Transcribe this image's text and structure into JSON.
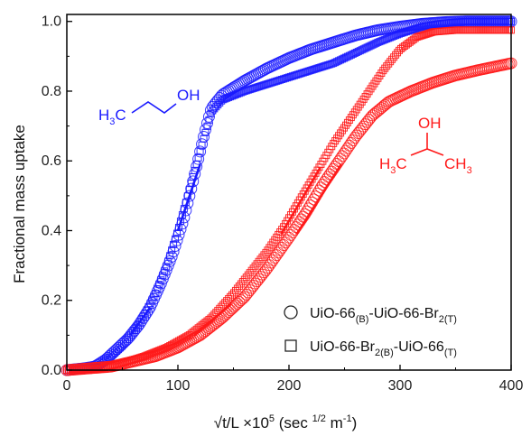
{
  "chart_data": {
    "type": "scatter",
    "xlabel_parts": [
      "√t/L ×10",
      "5",
      " (sec ",
      "1/2",
      " m",
      "-1",
      ")"
    ],
    "ylabel": "Fractional mass uptake",
    "xlim": [
      0,
      400
    ],
    "ylim": [
      0,
      1.02
    ],
    "x_ticks": [
      "0",
      "100",
      "200",
      "300",
      "400"
    ],
    "y_ticks": [
      "0.0",
      "0.2",
      "0.4",
      "0.6",
      "0.8",
      "1.0"
    ],
    "legend_placement": "bottom-right",
    "legend": [
      {
        "marker": "circle",
        "parts": [
          "UiO-66",
          "(B)",
          "-UiO-66-Br",
          "2(T)"
        ]
      },
      {
        "marker": "square",
        "parts": [
          "UiO-66-Br",
          "2(B)",
          "-UiO-66",
          "(T)"
        ]
      }
    ],
    "molecules": {
      "propanol": {
        "h": "H",
        "sub": "3",
        "c": "C",
        "oh": "OH"
      },
      "isopropanol": {
        "oh": "OH",
        "left_h": "H",
        "left_sub": "3",
        "left_c": "C",
        "right_c": "CH",
        "right_sub": "3"
      }
    },
    "colors": {
      "propanol": "#1a1aff",
      "isopropanol": "#ff1a1a"
    },
    "series": [
      {
        "molecule": "1-propanol",
        "color": "#1a1aff",
        "marker": "circle",
        "points": [
          [
            0,
            0
          ],
          [
            15,
            0.005
          ],
          [
            25,
            0.01
          ],
          [
            35,
            0.03
          ],
          [
            45,
            0.06
          ],
          [
            55,
            0.09
          ],
          [
            65,
            0.13
          ],
          [
            75,
            0.18
          ],
          [
            85,
            0.25
          ],
          [
            95,
            0.33
          ],
          [
            105,
            0.43
          ],
          [
            112,
            0.52
          ],
          [
            118,
            0.6
          ],
          [
            124,
            0.68
          ],
          [
            130,
            0.75
          ],
          [
            140,
            0.79
          ],
          [
            160,
            0.83
          ],
          [
            180,
            0.865
          ],
          [
            200,
            0.895
          ],
          [
            220,
            0.92
          ],
          [
            240,
            0.94
          ],
          [
            260,
            0.96
          ],
          [
            280,
            0.975
          ],
          [
            300,
            0.985
          ],
          [
            320,
            0.993
          ],
          [
            340,
            0.998
          ],
          [
            360,
            1.0
          ],
          [
            380,
            1.0
          ],
          [
            400,
            1.0
          ]
        ]
      },
      {
        "molecule": "1-propanol",
        "color": "#1a1aff",
        "marker": "square",
        "points": [
          [
            0,
            0
          ],
          [
            20,
            0.005
          ],
          [
            30,
            0.015
          ],
          [
            40,
            0.04
          ],
          [
            50,
            0.07
          ],
          [
            60,
            0.11
          ],
          [
            70,
            0.16
          ],
          [
            80,
            0.22
          ],
          [
            90,
            0.3
          ],
          [
            100,
            0.4
          ],
          [
            108,
            0.49
          ],
          [
            115,
            0.57
          ],
          [
            122,
            0.65
          ],
          [
            130,
            0.74
          ],
          [
            140,
            0.775
          ],
          [
            160,
            0.8
          ],
          [
            180,
            0.82
          ],
          [
            200,
            0.84
          ],
          [
            220,
            0.86
          ],
          [
            240,
            0.88
          ],
          [
            260,
            0.91
          ],
          [
            280,
            0.94
          ],
          [
            300,
            0.965
          ],
          [
            320,
            0.985
          ],
          [
            340,
            0.995
          ],
          [
            360,
            1.0
          ],
          [
            380,
            1.0
          ],
          [
            400,
            1.0
          ]
        ]
      },
      {
        "molecule": "2-propanol",
        "color": "#ff1a1a",
        "marker": "circle",
        "points": [
          [
            0,
            0
          ],
          [
            40,
            0.01
          ],
          [
            60,
            0.025
          ],
          [
            80,
            0.04
          ],
          [
            100,
            0.065
          ],
          [
            120,
            0.1
          ],
          [
            140,
            0.15
          ],
          [
            160,
            0.21
          ],
          [
            180,
            0.29
          ],
          [
            200,
            0.38
          ],
          [
            215,
            0.45
          ],
          [
            230,
            0.53
          ],
          [
            245,
            0.6
          ],
          [
            260,
            0.67
          ],
          [
            275,
            0.73
          ],
          [
            290,
            0.77
          ],
          [
            310,
            0.8
          ],
          [
            330,
            0.825
          ],
          [
            350,
            0.845
          ],
          [
            370,
            0.86
          ],
          [
            385,
            0.87
          ],
          [
            400,
            0.88
          ]
        ]
      },
      {
        "molecule": "2-propanol",
        "color": "#ff1a1a",
        "marker": "square",
        "points": [
          [
            0,
            0
          ],
          [
            30,
            0.005
          ],
          [
            50,
            0.02
          ],
          [
            70,
            0.04
          ],
          [
            90,
            0.065
          ],
          [
            110,
            0.1
          ],
          [
            130,
            0.15
          ],
          [
            150,
            0.22
          ],
          [
            165,
            0.28
          ],
          [
            180,
            0.34
          ],
          [
            195,
            0.41
          ],
          [
            210,
            0.49
          ],
          [
            225,
            0.57
          ],
          [
            240,
            0.65
          ],
          [
            255,
            0.72
          ],
          [
            270,
            0.79
          ],
          [
            285,
            0.86
          ],
          [
            300,
            0.92
          ],
          [
            315,
            0.955
          ],
          [
            330,
            0.97
          ],
          [
            350,
            0.975
          ],
          [
            375,
            0.975
          ],
          [
            400,
            0.975
          ]
        ]
      }
    ],
    "fit_lines": [
      {
        "color": "#1a1aff",
        "x": [
          57,
          75
        ],
        "y": [
          0.1,
          0.18
        ]
      },
      {
        "color": "#1a1aff",
        "x": [
          100,
          120
        ],
        "y": [
          0.4,
          0.59
        ]
      },
      {
        "color": "#ff1a1a",
        "x": [
          115,
          148
        ],
        "y": [
          0.1,
          0.19
        ]
      },
      {
        "color": "#ff1a1a",
        "x": [
          193,
          228
        ],
        "y": [
          0.39,
          0.58
        ]
      },
      {
        "color": "#ff1a1a",
        "x": [
          207,
          247
        ],
        "y": [
          0.39,
          0.59
        ]
      }
    ]
  }
}
